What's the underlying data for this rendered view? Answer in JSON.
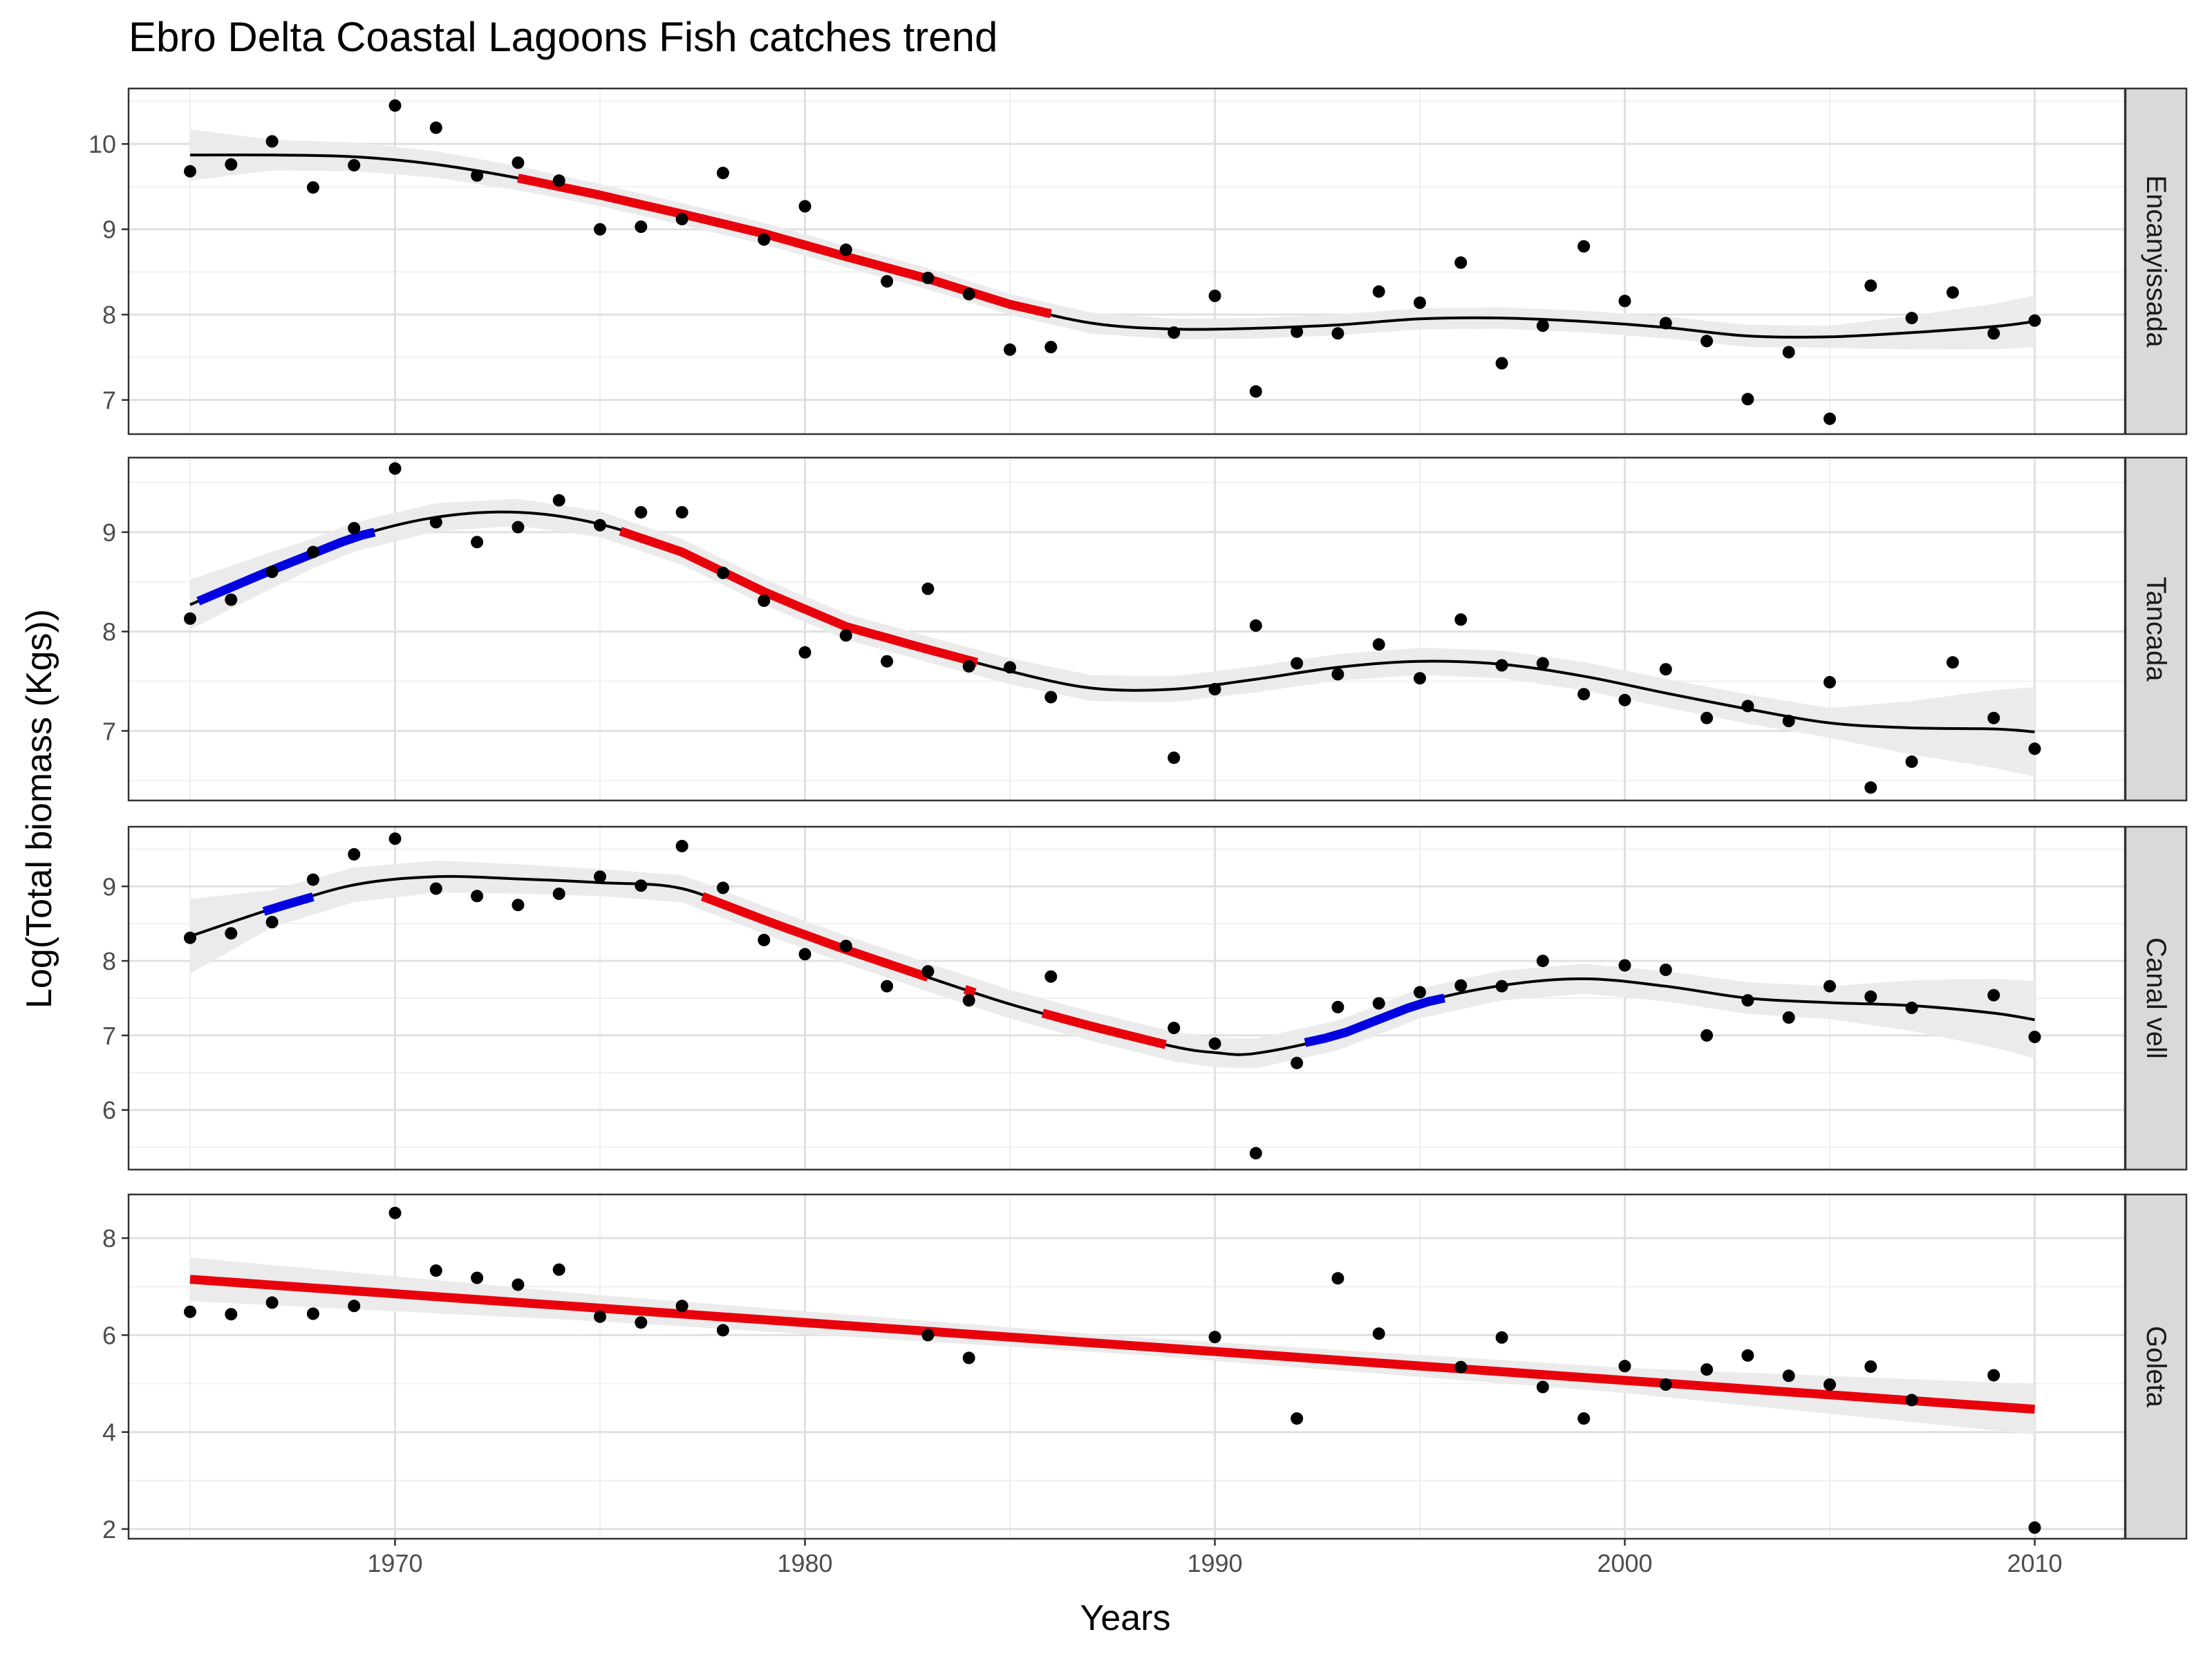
{
  "chart_data": {
    "type": "scatter",
    "title": "Ebro Delta Coastal Lagoons Fish catches trend",
    "xlabel": "Years",
    "ylabel": "Log(Total biomass (Kgs))",
    "xlim": [
      1963.5,
      2012.2
    ],
    "x_ticks": [
      1970,
      1980,
      1990,
      2000,
      2010
    ],
    "grid": true,
    "colors": {
      "points": "#000000",
      "smooth": "#000000",
      "ribbon": "#ebebeb",
      "decrease": "#e8000b",
      "increase": "#0000e0",
      "strip_bg": "#d9d9d9",
      "grid_major": "#e0e0e0",
      "grid_minor": "#f0f0f0"
    },
    "panels": [
      {
        "name": "Encanyissada",
        "ylim": [
          6.6,
          10.65
        ],
        "y_ticks": [
          7,
          8,
          9,
          10
        ],
        "points": [
          [
            1965,
            9.68
          ],
          [
            1966,
            9.76
          ],
          [
            1967,
            10.03
          ],
          [
            1968,
            9.49
          ],
          [
            1969,
            9.75
          ],
          [
            1970,
            10.45
          ],
          [
            1971,
            10.19
          ],
          [
            1972,
            9.63
          ],
          [
            1973,
            9.78
          ],
          [
            1974,
            9.57
          ],
          [
            1975,
            9.0
          ],
          [
            1976,
            9.03
          ],
          [
            1977,
            9.12
          ],
          [
            1978,
            9.66
          ],
          [
            1979,
            8.88
          ],
          [
            1980,
            9.27
          ],
          [
            1981,
            8.76
          ],
          [
            1982,
            8.39
          ],
          [
            1983,
            8.43
          ],
          [
            1984,
            8.24
          ],
          [
            1985,
            7.59
          ],
          [
            1986,
            7.62
          ],
          [
            1989,
            7.79
          ],
          [
            1990,
            8.22
          ],
          [
            1991,
            7.1
          ],
          [
            1992,
            7.8
          ],
          [
            1993,
            7.78
          ],
          [
            1994,
            8.27
          ],
          [
            1995,
            8.14
          ],
          [
            1996,
            8.61
          ],
          [
            1997,
            7.43
          ],
          [
            1998,
            7.87
          ],
          [
            1999,
            8.8
          ],
          [
            2000,
            8.16
          ],
          [
            2001,
            7.9
          ],
          [
            2002,
            7.69
          ],
          [
            2003,
            7.01
          ],
          [
            2004,
            7.56
          ],
          [
            2005,
            6.78
          ],
          [
            2006,
            8.34
          ],
          [
            2007,
            7.96
          ],
          [
            2008,
            8.26
          ],
          [
            2009,
            7.78
          ],
          [
            2010,
            7.93
          ]
        ],
        "smooth": [
          [
            1965,
            9.87
          ],
          [
            1967,
            9.87
          ],
          [
            1969,
            9.85
          ],
          [
            1971,
            9.76
          ],
          [
            1973,
            9.6
          ],
          [
            1975,
            9.4
          ],
          [
            1977,
            9.18
          ],
          [
            1979,
            8.95
          ],
          [
            1981,
            8.68
          ],
          [
            1983,
            8.42
          ],
          [
            1985,
            8.12
          ],
          [
            1987,
            7.9
          ],
          [
            1989,
            7.83
          ],
          [
            1991,
            7.84
          ],
          [
            1993,
            7.88
          ],
          [
            1995,
            7.95
          ],
          [
            1997,
            7.96
          ],
          [
            1999,
            7.92
          ],
          [
            2001,
            7.85
          ],
          [
            2003,
            7.75
          ],
          [
            2005,
            7.74
          ],
          [
            2007,
            7.79
          ],
          [
            2009,
            7.86
          ],
          [
            2010,
            7.92
          ]
        ],
        "ribbon_half": [
          [
            1965,
            0.3
          ],
          [
            1967,
            0.18
          ],
          [
            1975,
            0.13
          ],
          [
            1990,
            0.12
          ],
          [
            2005,
            0.13
          ],
          [
            2010,
            0.3
          ]
        ],
        "segments": [
          {
            "trend": "decrease",
            "from": 1973,
            "to": 1986
          }
        ]
      },
      {
        "name": "Tancada",
        "ylim": [
          6.3,
          9.75
        ],
        "y_ticks": [
          7,
          8,
          9
        ],
        "points": [
          [
            1965,
            8.13
          ],
          [
            1966,
            8.32
          ],
          [
            1967,
            8.6
          ],
          [
            1968,
            8.8
          ],
          [
            1969,
            9.04
          ],
          [
            1970,
            9.64
          ],
          [
            1971,
            9.1
          ],
          [
            1972,
            8.9
          ],
          [
            1973,
            9.05
          ],
          [
            1974,
            9.32
          ],
          [
            1975,
            9.07
          ],
          [
            1976,
            9.2
          ],
          [
            1977,
            9.2
          ],
          [
            1978,
            8.59
          ],
          [
            1979,
            8.31
          ],
          [
            1980,
            7.79
          ],
          [
            1981,
            7.96
          ],
          [
            1982,
            7.7
          ],
          [
            1983,
            8.43
          ],
          [
            1984,
            7.65
          ],
          [
            1985,
            7.64
          ],
          [
            1986,
            7.34
          ],
          [
            1989,
            6.73
          ],
          [
            1990,
            7.42
          ],
          [
            1991,
            8.06
          ],
          [
            1992,
            7.68
          ],
          [
            1993,
            7.57
          ],
          [
            1994,
            7.87
          ],
          [
            1995,
            7.53
          ],
          [
            1996,
            8.12
          ],
          [
            1997,
            7.66
          ],
          [
            1998,
            7.68
          ],
          [
            1999,
            7.37
          ],
          [
            2000,
            7.31
          ],
          [
            2001,
            7.62
          ],
          [
            2002,
            7.13
          ],
          [
            2003,
            7.25
          ],
          [
            2004,
            7.1
          ],
          [
            2005,
            7.49
          ],
          [
            2006,
            6.43
          ],
          [
            2007,
            6.69
          ],
          [
            2008,
            7.69
          ],
          [
            2009,
            7.13
          ],
          [
            2010,
            6.82
          ]
        ],
        "smooth": [
          [
            1965,
            8.27
          ],
          [
            1967,
            8.62
          ],
          [
            1969,
            8.95
          ],
          [
            1971,
            9.15
          ],
          [
            1973,
            9.2
          ],
          [
            1975,
            9.08
          ],
          [
            1977,
            8.8
          ],
          [
            1979,
            8.4
          ],
          [
            1981,
            8.05
          ],
          [
            1983,
            7.82
          ],
          [
            1985,
            7.6
          ],
          [
            1987,
            7.43
          ],
          [
            1989,
            7.42
          ],
          [
            1991,
            7.52
          ],
          [
            1993,
            7.64
          ],
          [
            1995,
            7.7
          ],
          [
            1997,
            7.67
          ],
          [
            1999,
            7.55
          ],
          [
            2001,
            7.38
          ],
          [
            2003,
            7.22
          ],
          [
            2005,
            7.08
          ],
          [
            2007,
            7.03
          ],
          [
            2009,
            7.02
          ],
          [
            2010,
            6.99
          ]
        ],
        "ribbon_half": [
          [
            1965,
            0.25
          ],
          [
            1968,
            0.15
          ],
          [
            1975,
            0.13
          ],
          [
            1990,
            0.13
          ],
          [
            2005,
            0.15
          ],
          [
            2010,
            0.45
          ]
        ],
        "segments": [
          {
            "trend": "increase",
            "from": 1965.2,
            "to": 1969.5
          },
          {
            "trend": "decrease",
            "from": 1975.5,
            "to": 1984.2
          }
        ]
      },
      {
        "name": "Canal vell",
        "ylim": [
          5.2,
          9.8
        ],
        "y_ticks": [
          6,
          7,
          8,
          9
        ],
        "points": [
          [
            1965,
            8.31
          ],
          [
            1966,
            8.37
          ],
          [
            1967,
            8.52
          ],
          [
            1968,
            9.09
          ],
          [
            1969,
            9.43
          ],
          [
            1970,
            9.64
          ],
          [
            1971,
            8.97
          ],
          [
            1972,
            8.87
          ],
          [
            1973,
            8.75
          ],
          [
            1974,
            8.9
          ],
          [
            1975,
            9.13
          ],
          [
            1976,
            9.01
          ],
          [
            1977,
            9.54
          ],
          [
            1978,
            8.98
          ],
          [
            1979,
            8.28
          ],
          [
            1980,
            8.09
          ],
          [
            1981,
            8.2
          ],
          [
            1982,
            7.66
          ],
          [
            1983,
            7.86
          ],
          [
            1984,
            7.47
          ],
          [
            1986,
            7.79
          ],
          [
            1989,
            7.1
          ],
          [
            1990,
            6.89
          ],
          [
            1991,
            5.42
          ],
          [
            1992,
            6.63
          ],
          [
            1993,
            7.38
          ],
          [
            1994,
            7.43
          ],
          [
            1995,
            7.58
          ],
          [
            1996,
            7.67
          ],
          [
            1997,
            7.66
          ],
          [
            1998,
            8.0
          ],
          [
            2000,
            7.94
          ],
          [
            2001,
            7.88
          ],
          [
            2002,
            7.0
          ],
          [
            2003,
            7.47
          ],
          [
            2004,
            7.24
          ],
          [
            2005,
            7.66
          ],
          [
            2006,
            7.52
          ],
          [
            2007,
            7.37
          ],
          [
            2009,
            7.54
          ],
          [
            2010,
            6.98
          ]
        ],
        "smooth": [
          [
            1965,
            8.33
          ],
          [
            1967,
            8.7
          ],
          [
            1969,
            9.02
          ],
          [
            1971,
            9.13
          ],
          [
            1973,
            9.1
          ],
          [
            1975,
            9.05
          ],
          [
            1977,
            8.97
          ],
          [
            1979,
            8.55
          ],
          [
            1981,
            8.15
          ],
          [
            1983,
            7.78
          ],
          [
            1985,
            7.42
          ],
          [
            1987,
            7.12
          ],
          [
            1989,
            6.85
          ],
          [
            1990,
            6.77
          ],
          [
            1991,
            6.76
          ],
          [
            1993,
            7.0
          ],
          [
            1995,
            7.43
          ],
          [
            1997,
            7.67
          ],
          [
            1999,
            7.76
          ],
          [
            2001,
            7.66
          ],
          [
            2003,
            7.5
          ],
          [
            2005,
            7.44
          ],
          [
            2007,
            7.4
          ],
          [
            2009,
            7.3
          ],
          [
            2010,
            7.21
          ]
        ],
        "ribbon_half": [
          [
            1965,
            0.5
          ],
          [
            1967,
            0.25
          ],
          [
            1975,
            0.18
          ],
          [
            1990,
            0.2
          ],
          [
            2000,
            0.2
          ],
          [
            2005,
            0.22
          ],
          [
            2010,
            0.52
          ]
        ],
        "segments": [
          {
            "trend": "increase",
            "from": 1966.8,
            "to": 1968.0
          },
          {
            "trend": "decrease",
            "from": 1977.5,
            "to": 1983.0
          },
          {
            "trend": "decrease",
            "from": 1983.9,
            "to": 1984.15
          },
          {
            "trend": "decrease",
            "from": 1985.8,
            "to": 1988.8
          },
          {
            "trend": "increase",
            "from": 1992.2,
            "to": 1995.6
          }
        ]
      },
      {
        "name": "Goleta",
        "ylim": [
          1.8,
          8.9
        ],
        "y_ticks": [
          2,
          4,
          6,
          8
        ],
        "points": [
          [
            1965,
            6.48
          ],
          [
            1966,
            6.43
          ],
          [
            1967,
            6.67
          ],
          [
            1968,
            6.44
          ],
          [
            1969,
            6.6
          ],
          [
            1970,
            8.52
          ],
          [
            1971,
            7.33
          ],
          [
            1972,
            7.18
          ],
          [
            1973,
            7.04
          ],
          [
            1974,
            7.35
          ],
          [
            1975,
            6.38
          ],
          [
            1976,
            6.26
          ],
          [
            1977,
            6.6
          ],
          [
            1978,
            6.1
          ],
          [
            1983,
            6.0
          ],
          [
            1984,
            5.53
          ],
          [
            1990,
            5.96
          ],
          [
            1992,
            4.28
          ],
          [
            1993,
            7.17
          ],
          [
            1994,
            6.03
          ],
          [
            1996,
            5.34
          ],
          [
            1997,
            5.95
          ],
          [
            1998,
            4.93
          ],
          [
            1999,
            4.28
          ],
          [
            2000,
            5.36
          ],
          [
            2001,
            4.98
          ],
          [
            2002,
            5.29
          ],
          [
            2003,
            5.58
          ],
          [
            2004,
            5.16
          ],
          [
            2005,
            4.98
          ],
          [
            2006,
            5.35
          ],
          [
            2007,
            4.66
          ],
          [
            2009,
            5.17
          ],
          [
            2010,
            2.03
          ]
        ],
        "smooth": [
          [
            1965,
            7.15
          ],
          [
            2010,
            4.47
          ]
        ],
        "ribbon_half": [
          [
            1965,
            0.45
          ],
          [
            1975,
            0.27
          ],
          [
            1988,
            0.18
          ],
          [
            2000,
            0.26
          ],
          [
            2010,
            0.52
          ]
        ],
        "segments": [
          {
            "trend": "decrease",
            "from": 1965,
            "to": 2010
          }
        ]
      }
    ]
  }
}
